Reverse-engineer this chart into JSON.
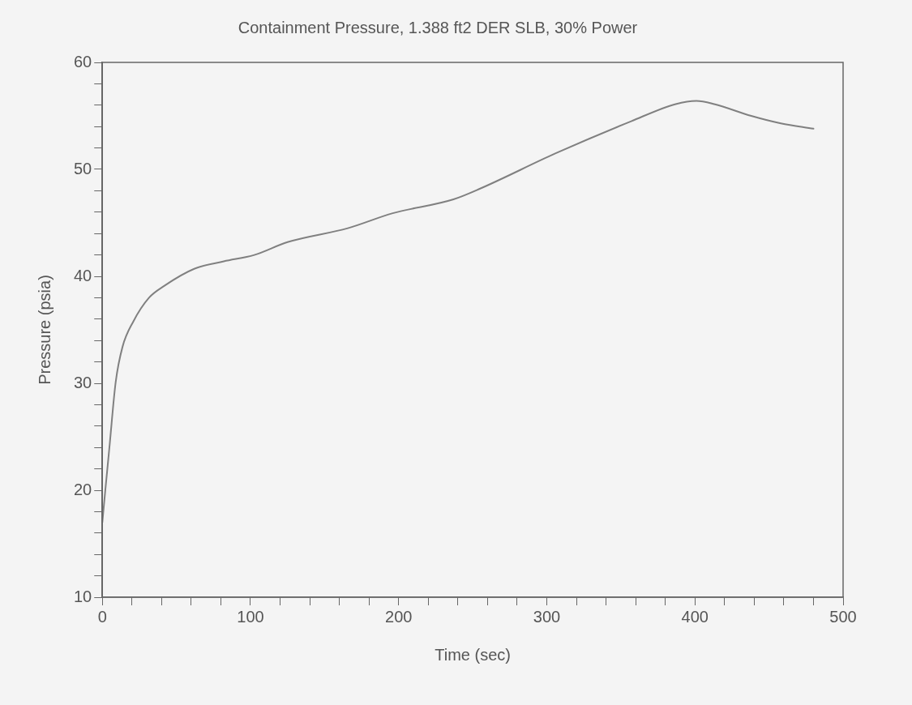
{
  "chart_data": {
    "type": "line",
    "title": "Containment Pressure, 1.388 ft2 DER SLB, 30% Power",
    "xlabel": "Time (sec)",
    "ylabel": "Pressure (psia)",
    "xlim": [
      0,
      500
    ],
    "ylim": [
      10,
      60
    ],
    "xticks": [
      0,
      {
        "value": 20,
        "label": null
      },
      {
        "value": 40,
        "label": null
      },
      {
        "value": 60,
        "label": null
      },
      {
        "value": 80,
        "label": null
      },
      100,
      {
        "value": 120,
        "label": null
      },
      {
        "value": 140,
        "label": null
      },
      {
        "value": 160,
        "label": null
      },
      {
        "value": 180,
        "label": null
      },
      200,
      {
        "value": 220,
        "label": null
      },
      {
        "value": 240,
        "label": null
      },
      {
        "value": 260,
        "label": null
      },
      {
        "value": 280,
        "label": null
      },
      300,
      {
        "value": 320,
        "label": null
      },
      {
        "value": 340,
        "label": null
      },
      {
        "value": 360,
        "label": null
      },
      {
        "value": 380,
        "label": null
      },
      400,
      {
        "value": 420,
        "label": null
      },
      {
        "value": 440,
        "label": null
      },
      {
        "value": 460,
        "label": null
      },
      {
        "value": 480,
        "label": null
      },
      500
    ],
    "yticks": [
      10,
      {
        "value": 12,
        "label": null
      },
      {
        "value": 14,
        "label": null
      },
      {
        "value": 16,
        "label": null
      },
      {
        "value": 18,
        "label": null
      },
      20,
      {
        "value": 22,
        "label": null
      },
      {
        "value": 24,
        "label": null
      },
      {
        "value": 26,
        "label": null
      },
      {
        "value": 28,
        "label": null
      },
      30,
      {
        "value": 32,
        "label": null
      },
      {
        "value": 34,
        "label": null
      },
      {
        "value": 36,
        "label": null
      },
      {
        "value": 38,
        "label": null
      },
      40,
      {
        "value": 42,
        "label": null
      },
      {
        "value": 44,
        "label": null
      },
      {
        "value": 46,
        "label": null
      },
      {
        "value": 48,
        "label": null
      },
      50,
      {
        "value": 52,
        "label": null
      },
      {
        "value": 54,
        "label": null
      },
      {
        "value": 56,
        "label": null
      },
      {
        "value": 58,
        "label": null
      },
      60
    ],
    "grid": false,
    "legend": false,
    "marker": "none",
    "line_style": "solid",
    "series": [
      {
        "color": "#808080",
        "x": [
          0,
          2,
          4.7,
          9,
          13.6,
          21,
          31.5,
          41.7,
          62,
          82,
          102.6,
          125,
          165.7,
          196,
          237,
          255,
          306,
          357,
          387,
          401,
          413,
          438,
          458,
          480
        ],
        "values": [
          17,
          20,
          23.9,
          30.1,
          33.4,
          35.8,
          38,
          39.1,
          40.7,
          41.4,
          42,
          43.2,
          44.5,
          45.9,
          47.2,
          48.2,
          51.5,
          54.5,
          56.1,
          56.4,
          56.1,
          55,
          54.3,
          53.8
        ]
      }
    ]
  }
}
